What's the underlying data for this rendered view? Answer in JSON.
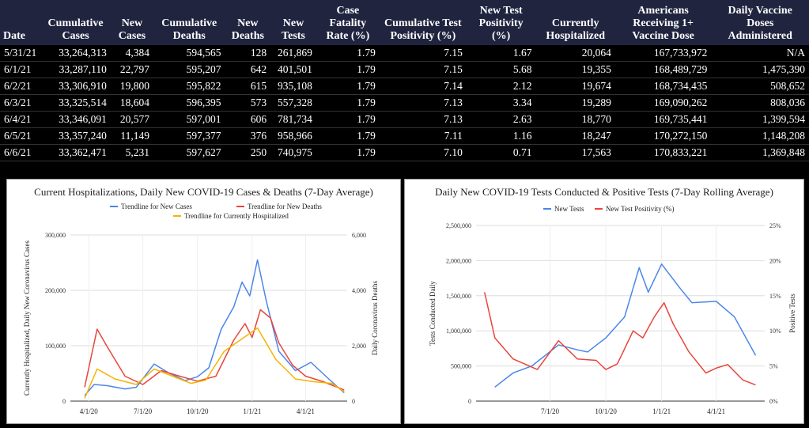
{
  "table": {
    "headers": [
      "Date",
      "Cumulative Cases",
      "New Cases",
      "Cumulative Deaths",
      "New Deaths",
      "New Tests",
      "Case Fatality Rate (%)",
      "Cumulative Test Positivity (%)",
      "New Test Positivity (%)",
      "Currently Hospitalized",
      "Americans Receiving 1+ Vaccine Dose",
      "Daily Vaccine Doses Administered"
    ],
    "rows": [
      [
        "5/31/21",
        "33,264,313",
        "4,384",
        "594,565",
        "128",
        "261,869",
        "1.79",
        "7.15",
        "1.67",
        "20,064",
        "167,733,972",
        "N/A"
      ],
      [
        "6/1/21",
        "33,287,110",
        "22,797",
        "595,207",
        "642",
        "401,501",
        "1.79",
        "7.15",
        "5.68",
        "19,355",
        "168,489,729",
        "1,475,390"
      ],
      [
        "6/2/21",
        "33,306,910",
        "19,800",
        "595,822",
        "615",
        "935,108",
        "1.79",
        "7.14",
        "2.12",
        "19,674",
        "168,734,435",
        "508,652"
      ],
      [
        "6/3/21",
        "33,325,514",
        "18,604",
        "596,395",
        "573",
        "557,328",
        "1.79",
        "7.13",
        "3.34",
        "19,289",
        "169,090,262",
        "808,036"
      ],
      [
        "6/4/21",
        "33,346,091",
        "20,577",
        "597,001",
        "606",
        "781,734",
        "1.79",
        "7.13",
        "2.63",
        "18,770",
        "169,735,441",
        "1,399,594"
      ],
      [
        "6/5/21",
        "33,357,240",
        "11,149",
        "597,377",
        "376",
        "958,966",
        "1.79",
        "7.11",
        "1.16",
        "18,247",
        "170,272,150",
        "1,148,208"
      ],
      [
        "6/6/21",
        "33,362,471",
        "5,231",
        "597,627",
        "250",
        "740,975",
        "1.79",
        "7.10",
        "0.71",
        "17,563",
        "170,833,221",
        "1,369,848"
      ]
    ]
  },
  "chart_data": [
    {
      "type": "line",
      "title": "Current Hospitalizations, Daily New COVID-19 Cases & Deaths (7-Day Average)",
      "ylabel": "Currently Hospitalized, Daily New Coronavirus Cases",
      "y2label": "Daily Coronavirus Deaths",
      "xticks": [
        "4/1/20",
        "7/1/20",
        "10/1/20",
        "1/1/21",
        "4/1/21"
      ],
      "yticks": [
        "0",
        "100,000",
        "200,000",
        "300,000"
      ],
      "y2ticks": [
        "0",
        "2,000",
        "4,000",
        "6,000"
      ],
      "ylim": [
        0,
        300000
      ],
      "y2lim": [
        0,
        6000
      ],
      "xlim": [
        "2020-03-01",
        "2021-06-10"
      ],
      "grid": true,
      "legend": "top",
      "series": [
        {
          "name": "Trendline for New Cases",
          "color": "#4a86e8",
          "axis": "left",
          "points": [
            [
              "2020-03-25",
              10000
            ],
            [
              "2020-04-10",
              30000
            ],
            [
              "2020-05-01",
              28000
            ],
            [
              "2020-06-01",
              22000
            ],
            [
              "2020-06-20",
              25000
            ],
            [
              "2020-07-20",
              67000
            ],
            [
              "2020-08-15",
              50000
            ],
            [
              "2020-09-10",
              37000
            ],
            [
              "2020-10-01",
              44000
            ],
            [
              "2020-10-20",
              60000
            ],
            [
              "2020-11-10",
              130000
            ],
            [
              "2020-12-01",
              170000
            ],
            [
              "2020-12-15",
              215000
            ],
            [
              "2020-12-28",
              190000
            ],
            [
              "2021-01-10",
              255000
            ],
            [
              "2021-01-25",
              180000
            ],
            [
              "2021-02-15",
              90000
            ],
            [
              "2021-03-15",
              55000
            ],
            [
              "2021-04-10",
              70000
            ],
            [
              "2021-05-10",
              40000
            ],
            [
              "2021-06-05",
              15000
            ]
          ]
        },
        {
          "name": "Trendline for New Deaths",
          "color": "#e8453c",
          "axis": "right",
          "points": [
            [
              "2020-03-25",
              500
            ],
            [
              "2020-04-15",
              2600
            ],
            [
              "2020-05-01",
              2000
            ],
            [
              "2020-06-01",
              900
            ],
            [
              "2020-07-01",
              600
            ],
            [
              "2020-08-01",
              1100
            ],
            [
              "2020-09-01",
              900
            ],
            [
              "2020-10-01",
              720
            ],
            [
              "2020-11-01",
              900
            ],
            [
              "2020-12-01",
              2200
            ],
            [
              "2020-12-20",
              2800
            ],
            [
              "2021-01-01",
              2300
            ],
            [
              "2021-01-15",
              3300
            ],
            [
              "2021-02-01",
              3000
            ],
            [
              "2021-02-15",
              2100
            ],
            [
              "2021-03-10",
              1300
            ],
            [
              "2021-04-01",
              900
            ],
            [
              "2021-05-01",
              700
            ],
            [
              "2021-06-05",
              400
            ]
          ]
        },
        {
          "name": "Trendline for Currently Hospitalized",
          "color": "#f6b400",
          "axis": "left",
          "points": [
            [
              "2020-03-25",
              5000
            ],
            [
              "2020-04-15",
              58000
            ],
            [
              "2020-05-15",
              40000
            ],
            [
              "2020-06-20",
              30000
            ],
            [
              "2020-07-20",
              58000
            ],
            [
              "2020-08-20",
              45000
            ],
            [
              "2020-09-20",
              32000
            ],
            [
              "2020-10-15",
              38000
            ],
            [
              "2020-11-15",
              90000
            ],
            [
              "2021-01-10",
              132000
            ],
            [
              "2021-02-10",
              75000
            ],
            [
              "2021-03-15",
              40000
            ],
            [
              "2021-04-15",
              35000
            ],
            [
              "2021-05-15",
              32000
            ],
            [
              "2021-06-05",
              17000
            ]
          ]
        }
      ]
    },
    {
      "type": "line",
      "title": "Daily New COVID-19 Tests Conducted & Positive Tests (7-Day Rolling Average)",
      "ylabel": "Tests Conducted Daily",
      "y2label": "Positive Tests",
      "xticks": [
        "7/1/20",
        "10/1/20",
        "1/1/21",
        "4/1/21"
      ],
      "yticks": [
        "0",
        "500,000",
        "1,000,000",
        "1,500,000",
        "2,000,000",
        "2,500,000"
      ],
      "y2ticks": [
        "0%",
        "5%",
        "10%",
        "15%",
        "20%",
        "25%"
      ],
      "ylim": [
        0,
        2500000
      ],
      "y2lim": [
        0,
        25
      ],
      "xlim": [
        "2020-03-01",
        "2021-06-20"
      ],
      "grid": true,
      "legend": "top",
      "series": [
        {
          "name": "New Tests",
          "color": "#4a86e8",
          "axis": "left",
          "points": [
            [
              "2020-04-01",
              200000
            ],
            [
              "2020-05-01",
              400000
            ],
            [
              "2020-06-01",
              500000
            ],
            [
              "2020-07-15",
              800000
            ],
            [
              "2020-08-15",
              730000
            ],
            [
              "2020-09-01",
              700000
            ],
            [
              "2020-10-01",
              900000
            ],
            [
              "2020-11-01",
              1200000
            ],
            [
              "2020-11-25",
              1900000
            ],
            [
              "2020-12-10",
              1550000
            ],
            [
              "2021-01-01",
              1950000
            ],
            [
              "2021-02-01",
              1600000
            ],
            [
              "2021-02-20",
              1400000
            ],
            [
              "2021-04-01",
              1420000
            ],
            [
              "2021-05-01",
              1200000
            ],
            [
              "2021-06-05",
              650000
            ]
          ]
        },
        {
          "name": "New Test Positivity (%)",
          "color": "#e8453c",
          "axis": "right",
          "points": [
            [
              "2020-03-15",
              15.5
            ],
            [
              "2020-04-01",
              9
            ],
            [
              "2020-05-01",
              6
            ],
            [
              "2020-06-10",
              4.5
            ],
            [
              "2020-07-15",
              8.6
            ],
            [
              "2020-08-15",
              6
            ],
            [
              "2020-09-15",
              5.8
            ],
            [
              "2020-10-01",
              4.5
            ],
            [
              "2020-10-20",
              5.3
            ],
            [
              "2020-11-15",
              10
            ],
            [
              "2020-12-01",
              9
            ],
            [
              "2020-12-20",
              12
            ],
            [
              "2021-01-05",
              14
            ],
            [
              "2021-01-20",
              11
            ],
            [
              "2021-02-15",
              7
            ],
            [
              "2021-03-15",
              4
            ],
            [
              "2021-04-01",
              4.7
            ],
            [
              "2021-04-20",
              5.2
            ],
            [
              "2021-05-15",
              3
            ],
            [
              "2021-06-05",
              2.3
            ]
          ]
        }
      ]
    }
  ]
}
